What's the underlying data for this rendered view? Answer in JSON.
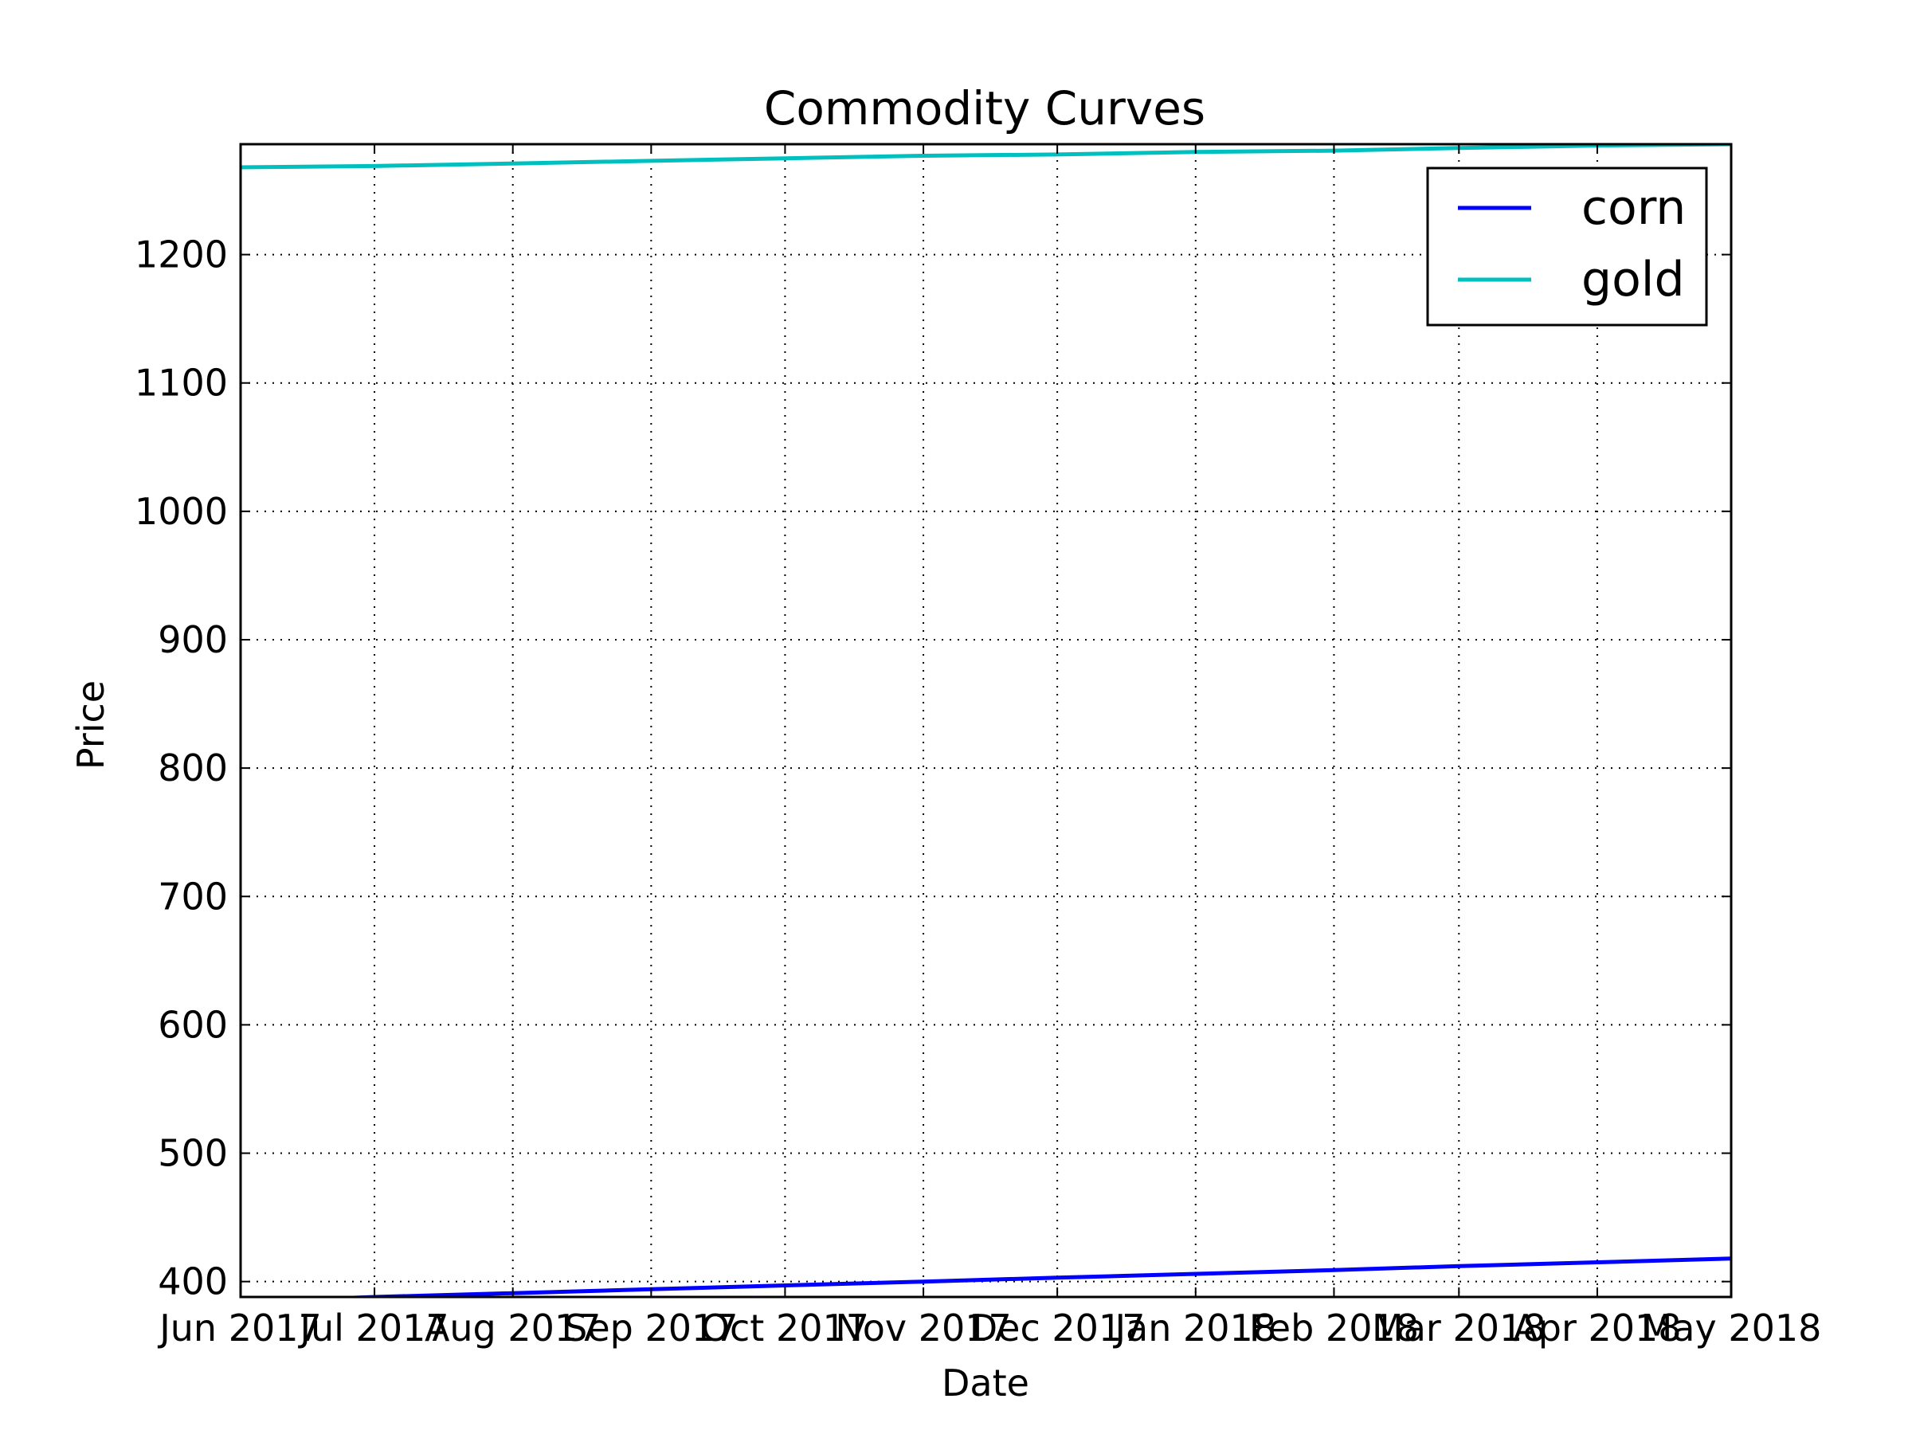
{
  "chart_data": {
    "type": "line",
    "title": "Commodity Curves",
    "xlabel": "Date",
    "ylabel": "Price",
    "x": [
      "2017-06-01",
      "2017-07-01",
      "2017-08-01",
      "2017-09-01",
      "2017-10-01",
      "2017-11-01",
      "2017-12-01",
      "2018-01-01",
      "2018-02-01",
      "2018-03-01",
      "2018-04-01",
      "2018-05-01"
    ],
    "x_tick_labels": [
      "Jun 2017",
      "Jul 2017",
      "Aug 2017",
      "Sep 2017",
      "Oct 2017",
      "Nov 2017",
      "Dec 2017",
      "Jan 2018",
      "Feb 2018",
      "Mar 2018",
      "Apr 2018",
      "May 2018"
    ],
    "y_ticks": [
      400,
      500,
      600,
      700,
      800,
      900,
      1000,
      1100,
      1200
    ],
    "xlim": [
      "2017-06-01",
      "2018-05-01"
    ],
    "ylim": [
      388,
      1286
    ],
    "grid": true,
    "legend_position": "upper right",
    "series": [
      {
        "name": "corn",
        "color": "#0000ff",
        "values": [
          384,
          388,
          391,
          394,
          397,
          400,
          403,
          406,
          409,
          412,
          415,
          418
        ]
      },
      {
        "name": "gold",
        "color": "#00bfbf",
        "values": [
          1268,
          1269,
          1271,
          1273,
          1275,
          1277,
          1278,
          1280,
          1281,
          1283,
          1285,
          1286
        ]
      }
    ]
  }
}
